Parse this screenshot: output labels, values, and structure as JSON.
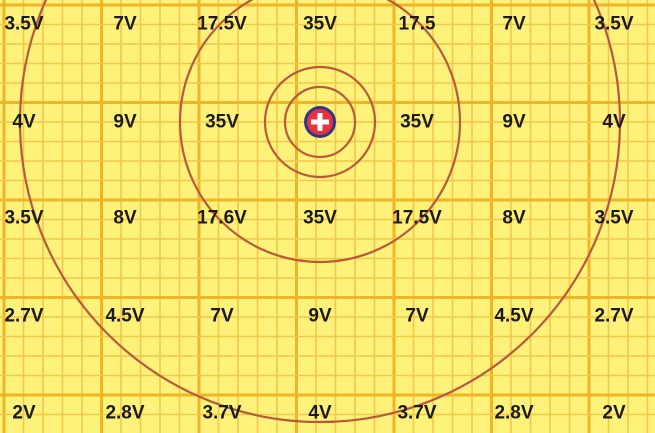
{
  "colors": {
    "background": "#fff27a",
    "grid_minor": "#f2c84a",
    "grid_major": "#efb526",
    "circles": "#b85a3a",
    "charge_fill": "#e8323f",
    "charge_outline": "#2b3a8f",
    "charge_sign": "#ffffff"
  },
  "charge": {
    "sign": "+",
    "icon": "positive-charge-icon"
  },
  "equipotential_circle_count": 5,
  "voltage_rows": [
    [
      "3.5V",
      "7V",
      "17.5V",
      "35V",
      "17.5",
      "7V",
      "3.5V"
    ],
    [
      "4V",
      "9V",
      "35V",
      "",
      "35V",
      "9V",
      "4V"
    ],
    [
      "3.5V",
      "8V",
      "17.6V",
      "35V",
      "17.5V",
      "8V",
      "3.5V"
    ],
    [
      "2.7V",
      "4.5V",
      "7V",
      "9V",
      "7V",
      "4.5V",
      "2.7V"
    ],
    [
      "2V",
      "2.8V",
      "3.7V",
      "4V",
      "3.7V",
      "2.8V",
      "2V"
    ]
  ]
}
